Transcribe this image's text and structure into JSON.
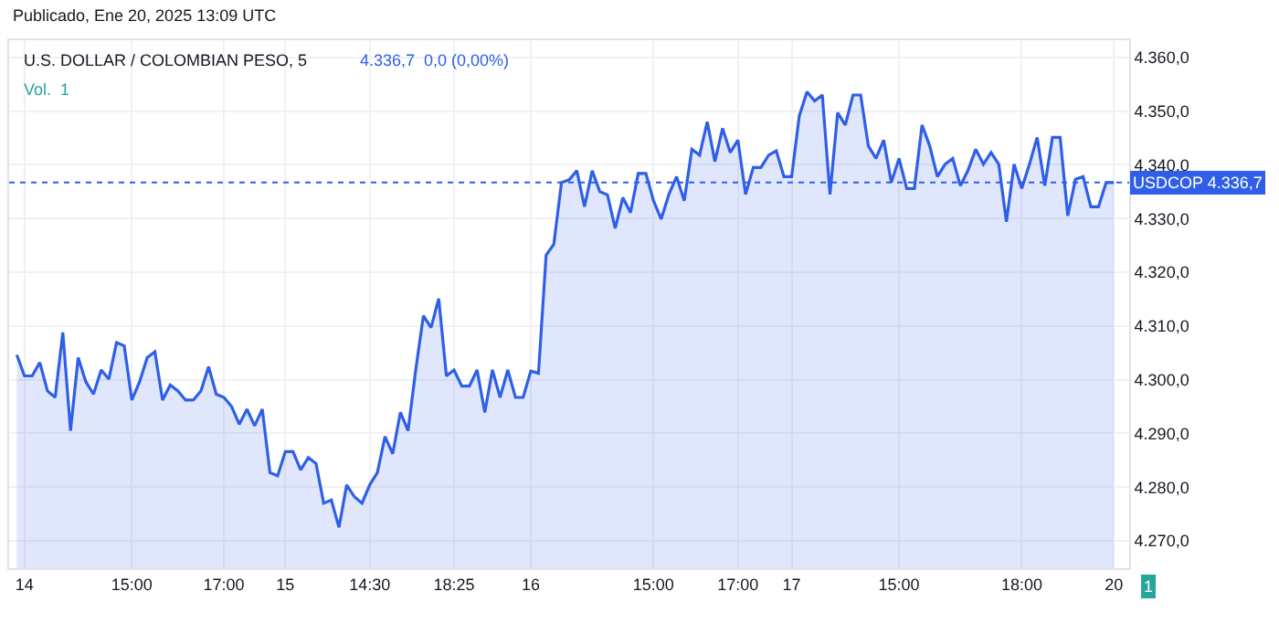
{
  "chart_data": {
    "type": "area",
    "title": "Publicado, Ene 20, 2025 13:09 UTC",
    "subtitle": "U.S. DOLLAR / COLOMBIAN PESO, 5",
    "annotations": [
      "4.336,7  0,0 (0,00%)",
      "Vol.  1",
      "1"
    ],
    "categories": [
      null,
      "14",
      null,
      null,
      null,
      null,
      null,
      null,
      null,
      null,
      null,
      null,
      null,
      null,
      null,
      "15:00",
      null,
      null,
      null,
      null,
      null,
      null,
      null,
      null,
      null,
      null,
      null,
      "17:00",
      null,
      null,
      null,
      null,
      null,
      null,
      null,
      "15",
      null,
      null,
      null,
      null,
      null,
      null,
      null,
      null,
      null,
      null,
      "14:30",
      null,
      null,
      null,
      null,
      null,
      null,
      null,
      null,
      null,
      null,
      "18:25",
      null,
      null,
      null,
      null,
      null,
      null,
      null,
      null,
      null,
      "16",
      null,
      null,
      null,
      null,
      null,
      null,
      null,
      null,
      null,
      null,
      null,
      null,
      null,
      null,
      null,
      "15:00",
      null,
      null,
      null,
      null,
      null,
      null,
      null,
      null,
      null,
      null,
      "17:00",
      null,
      null,
      null,
      null,
      null,
      null,
      "17",
      null,
      null,
      null,
      null,
      null,
      null,
      null,
      null,
      null,
      null,
      null,
      null,
      null,
      "15:00",
      null,
      null,
      null,
      null,
      null,
      null,
      null,
      null,
      null,
      null,
      null,
      null,
      null,
      null,
      null,
      "18:00",
      null,
      null,
      null,
      null,
      null,
      null,
      null,
      null,
      null,
      null,
      null,
      "20"
    ],
    "series": [
      {
        "color": "#2f5fe8",
        "values": [
          4304.6,
          4300.7,
          4300.7,
          4303.2,
          4297.9,
          4296.7,
          4308.8,
          4290.5,
          4304.1,
          4299.6,
          4297.3,
          4301.8,
          4300.1,
          4306.9,
          4306.3,
          4296.2,
          4299.6,
          4304.1,
          4305.2,
          4296.2,
          4299.0,
          4297.9,
          4296.2,
          4296.2,
          4297.9,
          4302.4,
          4297.3,
          4296.7,
          4295.0,
          4291.7,
          4294.5,
          4291.4,
          4294.5,
          4282.7,
          4282.1,
          4286.6,
          4286.6,
          4283.2,
          4285.5,
          4284.4,
          4277.0,
          4277.6,
          4272.5,
          4280.4,
          4278.2,
          4277.0,
          4280.4,
          4282.7,
          4289.4,
          4286.2,
          4293.9,
          4290.5,
          4301.8,
          4311.9,
          4309.7,
          4315.1,
          4300.7,
          4301.8,
          4298.8,
          4298.8,
          4301.8,
          4293.9,
          4301.8,
          4296.7,
          4301.8,
          4296.7,
          4296.7,
          4301.6,
          4301.2,
          4323.2,
          4325.2,
          4336.7,
          4337.2,
          4338.9,
          4332.2,
          4338.9,
          4335.0,
          4334.4,
          4328.2,
          4333.9,
          4331.1,
          4338.4,
          4338.4,
          4333.3,
          4329.9,
          4334.5,
          4337.8,
          4333.3,
          4342.9,
          4341.8,
          4348.0,
          4340.6,
          4346.8,
          4342.3,
          4344.6,
          4334.5,
          4339.5,
          4339.5,
          4341.8,
          4342.6,
          4337.8,
          4337.8,
          4349.1,
          4353.6,
          4351.9,
          4353.0,
          4334.5,
          4349.7,
          4347.4,
          4353.0,
          4353.0,
          4343.5,
          4341.2,
          4344.6,
          4336.7,
          4341.2,
          4335.6,
          4335.6,
          4347.4,
          4343.5,
          4337.8,
          4340.1,
          4341.2,
          4336.1,
          4339.0,
          4342.9,
          4340.1,
          4342.3,
          4340.1,
          4329.4,
          4340.1,
          4335.6,
          4340.1,
          4345.1,
          4336.1,
          4345.1,
          4345.1,
          4330.5,
          4337.3,
          4337.8,
          4332.2,
          4332.2,
          4336.7,
          4336.7
        ]
      }
    ],
    "ylim": [
      4264.9,
      4363.2
    ],
    "yticks": [
      {
        "value": 4270,
        "label": "4.270,0"
      },
      {
        "value": 4280,
        "label": "4.280,0"
      },
      {
        "value": 4290,
        "label": "4.290,0"
      },
      {
        "value": 4300,
        "label": "4.300,0"
      },
      {
        "value": 4310,
        "label": "4.310,0"
      },
      {
        "value": 4320,
        "label": "4.320,0"
      },
      {
        "value": 4330,
        "label": "4.330,0"
      },
      {
        "value": 4340,
        "label": "4.340,0"
      },
      {
        "value": 4350,
        "label": "4.350,0"
      },
      {
        "value": 4360,
        "label": "4.360,0"
      }
    ],
    "ref_lines": [
      {
        "axis": "y",
        "value": 4336.7,
        "label": "USDCOP 4.336,7",
        "color": "#2f5fe8",
        "line_style": "dotted"
      }
    ],
    "grid": true,
    "marker": "none",
    "line_style": "solid"
  }
}
